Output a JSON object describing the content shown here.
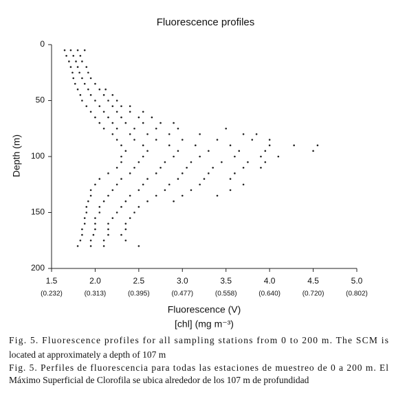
{
  "chart_data": {
    "type": "scatter",
    "title": "Fluorescence profiles",
    "x_label": "Fluorescence (V)",
    "x_label_2": "[chl] (mg m⁻³)",
    "y_label": "Depth (m)",
    "xlim": [
      1.5,
      5.0
    ],
    "ylim": [
      0,
      200
    ],
    "y_inverted": true,
    "color": "#222222",
    "xticks": [
      1.5,
      {
        "value": 2,
        "label": "2.0"
      },
      2.5,
      {
        "value": 3,
        "label": "3.0"
      },
      3.5,
      {
        "value": 4,
        "label": "4.0"
      },
      4.5,
      {
        "value": 5,
        "label": "5.0"
      }
    ],
    "x_secondary_labels": [
      "(0.232)",
      "(0.313)",
      "(0.395)",
      "(0.477)",
      "(0.558)",
      "(0.640)",
      "(0.720)",
      "(0.802)"
    ],
    "yticks": [
      0,
      50,
      100,
      150,
      200
    ],
    "x": [
      1.65,
      1.72,
      1.8,
      1.88,
      1.67,
      1.75,
      1.83,
      1.7,
      1.78,
      1.85,
      1.72,
      1.8,
      1.9,
      1.74,
      1.82,
      1.92,
      1.75,
      1.85,
      1.95,
      1.77,
      1.88,
      2.0,
      1.8,
      1.92,
      2.05,
      2.12,
      1.83,
      1.95,
      2.1,
      2.2,
      1.85,
      2.0,
      2.15,
      2.25,
      1.9,
      2.05,
      2.2,
      2.3,
      2.4,
      1.95,
      2.1,
      2.25,
      2.4,
      2.55,
      2.0,
      2.15,
      2.3,
      2.5,
      2.65,
      2.05,
      2.2,
      2.35,
      2.55,
      2.75,
      2.9,
      2.1,
      2.25,
      2.45,
      2.7,
      2.95,
      3.5,
      2.2,
      2.4,
      2.6,
      2.85,
      3.2,
      3.7,
      3.85,
      2.25,
      2.45,
      2.7,
      3.0,
      3.4,
      3.8,
      4.0,
      2.3,
      2.55,
      2.85,
      3.15,
      3.55,
      4.0,
      4.28,
      4.55,
      2.35,
      2.6,
      2.95,
      3.3,
      3.65,
      3.95,
      4.5,
      2.3,
      2.55,
      2.9,
      3.2,
      3.6,
      3.9,
      4.1,
      2.3,
      2.5,
      2.8,
      3.1,
      3.45,
      3.75,
      3.95,
      2.25,
      2.45,
      2.75,
      3.05,
      3.35,
      3.7,
      3.9,
      2.15,
      2.4,
      2.7,
      3.0,
      3.3,
      3.6,
      2.05,
      2.3,
      2.6,
      2.95,
      3.25,
      3.55,
      2.0,
      2.25,
      2.55,
      2.85,
      3.2,
      3.7,
      1.95,
      2.2,
      2.5,
      2.8,
      3.1,
      3.55,
      1.95,
      2.15,
      2.4,
      2.7,
      3.0,
      3.4,
      1.92,
      2.1,
      2.35,
      2.6,
      2.9,
      1.9,
      2.05,
      2.3,
      2.5,
      1.9,
      2.05,
      2.25,
      2.45,
      1.88,
      2.0,
      2.2,
      2.4,
      1.88,
      2.0,
      2.15,
      2.35,
      1.85,
      2.0,
      2.15,
      2.35,
      1.85,
      1.98,
      2.15,
      2.3,
      1.83,
      1.95,
      2.1,
      2.35,
      1.8,
      1.95,
      2.1,
      2.5
    ],
    "values": [
      5,
      5,
      5,
      5,
      10,
      10,
      10,
      15,
      15,
      15,
      20,
      20,
      20,
      25,
      25,
      25,
      30,
      30,
      30,
      35,
      35,
      35,
      40,
      40,
      40,
      40,
      45,
      45,
      45,
      45,
      50,
      50,
      50,
      50,
      55,
      55,
      55,
      55,
      55,
      60,
      60,
      60,
      60,
      60,
      65,
      65,
      65,
      65,
      65,
      70,
      70,
      70,
      70,
      70,
      70,
      75,
      75,
      75,
      75,
      75,
      75,
      80,
      80,
      80,
      80,
      80,
      80,
      80,
      85,
      85,
      85,
      85,
      85,
      85,
      85,
      90,
      90,
      90,
      90,
      90,
      90,
      90,
      90,
      95,
      95,
      95,
      95,
      95,
      95,
      95,
      100,
      100,
      100,
      100,
      100,
      100,
      100,
      105,
      105,
      105,
      105,
      105,
      105,
      105,
      110,
      110,
      110,
      110,
      110,
      110,
      110,
      115,
      115,
      115,
      115,
      115,
      115,
      120,
      120,
      120,
      120,
      120,
      120,
      125,
      125,
      125,
      125,
      125,
      125,
      130,
      130,
      130,
      130,
      130,
      130,
      135,
      135,
      135,
      135,
      135,
      135,
      140,
      140,
      140,
      140,
      140,
      145,
      145,
      145,
      145,
      150,
      150,
      150,
      150,
      155,
      155,
      155,
      155,
      160,
      160,
      160,
      160,
      165,
      165,
      165,
      165,
      170,
      170,
      170,
      170,
      175,
      175,
      175,
      175,
      180,
      180,
      180,
      180
    ]
  },
  "caption": [
    "Fig. 5. Fluorescence profiles for all sampling stations from 0 to 200 m. The SCM is",
    "located at approximately a depth of 107 m",
    "Fig. 5. Perfiles de fluorescencia para todas las estaciones de muestreo de 0 a 200 m. El",
    "Máximo Superficial de Clorofila se ubica alrededor de los 107 m de profundidad"
  ]
}
